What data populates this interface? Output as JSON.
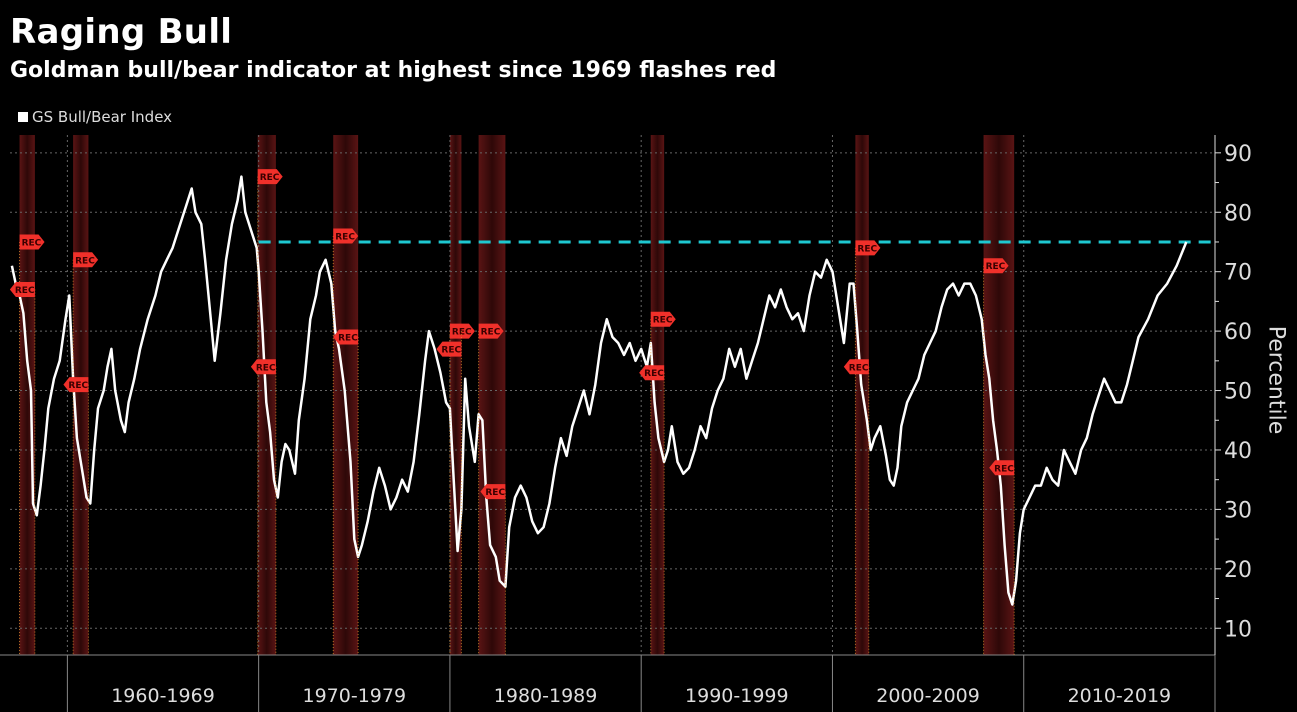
{
  "header": {
    "title": "Raging Bull",
    "subtitle": "Goldman bull/bear indicator at highest since 1969 flashes red"
  },
  "legend": [
    {
      "label": "GS Bull/Bear Index",
      "color": "#ffffff"
    }
  ],
  "chart_data": {
    "type": "line",
    "title": "Raging Bull",
    "subtitle": "Goldman bull/bear indicator at highest since 1969 flashes red",
    "xlabel": "",
    "ylabel": "Percentile",
    "xlim": [
      1957.0,
      2020.0
    ],
    "ylim": [
      5.5,
      93
    ],
    "yticks": [
      10,
      20,
      30,
      40,
      50,
      60,
      70,
      80,
      90
    ],
    "xtick_labels": [
      {
        "label": "1960-1969",
        "from": 1960,
        "to": 1970
      },
      {
        "label": "1970-1979",
        "from": 1970,
        "to": 1980
      },
      {
        "label": "1980-1989",
        "from": 1980,
        "to": 1990
      },
      {
        "label": "1990-1999",
        "from": 1990,
        "to": 2000
      },
      {
        "label": "2000-2009",
        "from": 2000,
        "to": 2010
      },
      {
        "label": "2010-2019",
        "from": 2010,
        "to": 2020
      }
    ],
    "grid": true,
    "legend_position": "top-left",
    "colors": {
      "line": "#ffffff",
      "threshold": "#1ec8d0",
      "recession": "#4a1111",
      "flag": "#f0302a",
      "dot": "#f0a030",
      "grid": "#666666",
      "axis": "#dddddd"
    },
    "threshold": {
      "value": 75,
      "from": 1970.0,
      "to": 2020.0
    },
    "recessions": [
      {
        "start": 1957.5,
        "end": 1958.3
      },
      {
        "start": 1960.3,
        "end": 1961.1
      },
      {
        "start": 1969.95,
        "end": 1970.9
      },
      {
        "start": 1973.9,
        "end": 1975.2
      },
      {
        "start": 1980.0,
        "end": 1980.6
      },
      {
        "start": 1981.5,
        "end": 1982.9
      },
      {
        "start": 1990.5,
        "end": 1991.2
      },
      {
        "start": 2001.2,
        "end": 2001.9
      },
      {
        "start": 2007.9,
        "end": 2009.5
      }
    ],
    "annotations": [
      {
        "label": "REC",
        "x": 1957.5,
        "y": 75,
        "dir": "right"
      },
      {
        "label": "REC",
        "x": 1958.3,
        "y": 67,
        "dir": "left"
      },
      {
        "label": "REC",
        "x": 1960.3,
        "y": 72,
        "dir": "right"
      },
      {
        "label": "REC",
        "x": 1961.1,
        "y": 51,
        "dir": "left"
      },
      {
        "label": "REC",
        "x": 1969.95,
        "y": 86,
        "dir": "right"
      },
      {
        "label": "REC",
        "x": 1970.9,
        "y": 54,
        "dir": "left"
      },
      {
        "label": "REC",
        "x": 1973.9,
        "y": 76,
        "dir": "right"
      },
      {
        "label": "REC",
        "x": 1975.2,
        "y": 59,
        "dir": "left"
      },
      {
        "label": "REC",
        "x": 1980.0,
        "y": 60,
        "dir": "right"
      },
      {
        "label": "REC",
        "x": 1980.6,
        "y": 60,
        "dir": "left"
      },
      {
        "label": "REC",
        "x": 1981.5,
        "y": 60,
        "dir": "right"
      },
      {
        "label": "REC",
        "x": 1982.9,
        "y": 33,
        "dir": "left"
      },
      {
        "label": "REC",
        "x": 1990.5,
        "y": 62,
        "dir": "right"
      },
      {
        "label": "REC",
        "x": 1991.2,
        "y": 53,
        "dir": "left"
      },
      {
        "label": "REC",
        "x": 2001.2,
        "y": 74,
        "dir": "right"
      },
      {
        "label": "REC",
        "x": 2001.9,
        "y": 54,
        "dir": "left"
      },
      {
        "label": "REC",
        "x": 2007.9,
        "y": 71,
        "dir": "right"
      },
      {
        "label": "REC",
        "x": 2009.5,
        "y": 37,
        "dir": "left"
      }
    ],
    "series": [
      {
        "name": "GS Bull/Bear Index",
        "x": [
          1957.1,
          1957.3,
          1957.5,
          1957.7,
          1957.9,
          1958.1,
          1958.2,
          1958.4,
          1958.6,
          1958.8,
          1959.0,
          1959.3,
          1959.6,
          1959.9,
          1960.1,
          1960.3,
          1960.5,
          1960.8,
          1961.0,
          1961.2,
          1961.4,
          1961.6,
          1961.9,
          1962.1,
          1962.3,
          1962.5,
          1962.8,
          1963.0,
          1963.2,
          1963.5,
          1963.8,
          1964.2,
          1964.6,
          1964.9,
          1965.2,
          1965.5,
          1965.9,
          1966.2,
          1966.5,
          1966.7,
          1967.0,
          1967.2,
          1967.5,
          1967.7,
          1968.0,
          1968.3,
          1968.6,
          1968.9,
          1969.1,
          1969.3,
          1969.6,
          1969.9,
          1970.0,
          1970.2,
          1970.4,
          1970.6,
          1970.8,
          1971.0,
          1971.2,
          1971.4,
          1971.6,
          1971.9,
          1972.1,
          1972.4,
          1972.7,
          1973.0,
          1973.2,
          1973.5,
          1973.8,
          1974.0,
          1974.2,
          1974.5,
          1974.8,
          1975.0,
          1975.2,
          1975.4,
          1975.7,
          1976.0,
          1976.3,
          1976.6,
          1976.9,
          1977.2,
          1977.5,
          1977.8,
          1978.1,
          1978.4,
          1978.7,
          1978.9,
          1979.2,
          1979.5,
          1979.8,
          1980.0,
          1980.2,
          1980.4,
          1980.6,
          1980.8,
          1981.0,
          1981.3,
          1981.5,
          1981.7,
          1981.9,
          1982.1,
          1982.4,
          1982.6,
          1982.9,
          1983.1,
          1983.4,
          1983.7,
          1984.0,
          1984.3,
          1984.6,
          1984.9,
          1985.2,
          1985.5,
          1985.8,
          1986.1,
          1986.4,
          1986.7,
          1987.0,
          1987.3,
          1987.6,
          1987.9,
          1988.2,
          1988.5,
          1988.8,
          1989.1,
          1989.4,
          1989.7,
          1990.0,
          1990.3,
          1990.5,
          1990.7,
          1990.9,
          1991.2,
          1991.4,
          1991.6,
          1991.9,
          1992.2,
          1992.5,
          1992.8,
          1993.1,
          1993.4,
          1993.7,
          1994.0,
          1994.3,
          1994.6,
          1994.9,
          1995.2,
          1995.5,
          1995.8,
          1996.1,
          1996.4,
          1996.7,
          1997.0,
          1997.3,
          1997.6,
          1997.9,
          1998.2,
          1998.5,
          1998.8,
          1999.1,
          1999.4,
          1999.7,
          2000.0,
          2000.3,
          2000.6,
          2000.9,
          2001.1,
          2001.3,
          2001.5,
          2001.8,
          2002.0,
          2002.2,
          2002.5,
          2002.8,
          2003.0,
          2003.2,
          2003.4,
          2003.6,
          2003.9,
          2004.2,
          2004.5,
          2004.8,
          2005.1,
          2005.4,
          2005.7,
          2006.0,
          2006.3,
          2006.6,
          2006.9,
          2007.2,
          2007.5,
          2007.8,
          2008.0,
          2008.2,
          2008.4,
          2008.6,
          2008.8,
          2009.0,
          2009.2,
          2009.4,
          2009.6,
          2009.8,
          2010.0,
          2010.3,
          2010.6,
          2010.9,
          2011.2,
          2011.5,
          2011.8,
          2012.1,
          2012.4,
          2012.7,
          2013.0,
          2013.3,
          2013.6,
          2013.9,
          2014.2,
          2014.5,
          2014.8,
          2015.1,
          2015.4,
          2015.7,
          2016.0,
          2016.5,
          2017.0,
          2017.5,
          2018.0,
          2018.5
        ],
        "values": [
          71,
          68,
          66,
          63,
          55,
          50,
          31,
          29,
          34,
          40,
          47,
          52,
          55,
          62,
          66,
          52,
          42,
          36,
          32,
          31,
          40,
          47,
          50,
          54,
          57,
          50,
          45,
          43,
          48,
          52,
          57,
          62,
          66,
          70,
          72,
          74,
          78,
          81,
          84,
          80,
          78,
          72,
          62,
          55,
          63,
          72,
          78,
          82,
          86,
          80,
          77,
          74,
          70,
          60,
          48,
          43,
          35,
          32,
          38,
          41,
          40,
          36,
          45,
          52,
          62,
          66,
          70,
          72,
          68,
          60,
          57,
          50,
          38,
          25,
          22,
          24,
          28,
          33,
          37,
          34,
          30,
          32,
          35,
          33,
          38,
          46,
          55,
          60,
          57,
          53,
          48,
          47,
          35,
          23,
          30,
          52,
          44,
          38,
          46,
          45,
          32,
          24,
          22,
          18,
          17,
          27,
          32,
          34,
          32,
          28,
          26,
          27,
          31,
          37,
          42,
          39,
          44,
          47,
          50,
          46,
          51,
          58,
          62,
          59,
          58,
          56,
          58,
          55,
          57,
          54,
          58,
          48,
          42,
          38,
          40,
          44,
          38,
          36,
          37,
          40,
          44,
          42,
          47,
          50,
          52,
          57,
          54,
          57,
          52,
          55,
          58,
          62,
          66,
          64,
          67,
          64,
          62,
          63,
          60,
          66,
          70,
          69,
          72,
          70,
          64,
          58,
          68,
          68,
          60,
          51,
          45,
          40,
          42,
          44,
          39,
          35,
          34,
          37,
          44,
          48,
          50,
          52,
          56,
          58,
          60,
          64,
          67,
          68,
          66,
          68,
          68,
          66,
          62,
          56,
          52,
          45,
          40,
          34,
          24,
          16,
          14,
          18,
          26,
          30,
          32,
          34,
          34,
          37,
          35,
          34,
          40,
          38,
          36,
          40,
          42,
          46,
          49,
          52,
          50,
          48,
          48,
          51,
          55,
          59,
          62,
          66,
          68,
          71,
          75
        ]
      }
    ]
  }
}
